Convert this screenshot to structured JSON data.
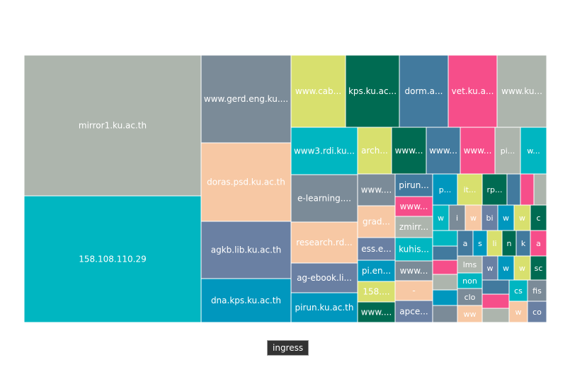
{
  "chart_data": {
    "type": "treemap",
    "series_name": "ingress",
    "legend": {
      "label": "ingress",
      "placement": "bottom-center"
    },
    "palette": {
      "gray": "#adb5ad",
      "cyan": "#00b6c1",
      "slate": "#7b8b98",
      "peach": "#f7c8a4",
      "blue_gray": "#6a80a3",
      "teal": "#0097be",
      "lime": "#d8e06e",
      "green": "#006b52",
      "steel": "#427a9e",
      "pink": "#f64e8a"
    },
    "nodes": [
      {
        "name": "mirror1.ku.ac.th",
        "label": "mirror1.ku.ac.th",
        "value": 41.2,
        "color": "#adb5ad"
      },
      {
        "name": "158.108.110.29",
        "label": "158.108.110.29",
        "value": 44.4,
        "color": "#00b6c1"
      },
      {
        "name": "www.gerd.eng.ku",
        "label": "www.gerd.eng.ku....",
        "value": 15.4,
        "color": "#7b8b98"
      },
      {
        "name": "doras.psd.ku.ac.th",
        "label": "doras.psd.ku.ac.th",
        "value": 13.9,
        "color": "#f7c8a4"
      },
      {
        "name": "agkb.lib.ku.ac.th",
        "label": "agkb.lib.ku.ac.th",
        "value": 10.2,
        "color": "#6a80a3"
      },
      {
        "name": "dna.kps.ku.ac.th",
        "label": "dna.kps.ku.ac.th",
        "value": 7.6,
        "color": "#0097be"
      },
      {
        "name": "www.cab",
        "label": "www.cab...",
        "value": 6.0,
        "color": "#d8e06e"
      },
      {
        "name": "kps.ku.ac",
        "label": "kps.ku.ac...",
        "value": 5.8,
        "color": "#006b52"
      },
      {
        "name": "dorm.a",
        "label": "dorm.a...",
        "value": 5.6,
        "color": "#427a9e"
      },
      {
        "name": "vet.ku.a",
        "label": "vet.ku.a...",
        "value": 5.2,
        "color": "#f64e8a"
      },
      {
        "name": "www.ku",
        "label": "www.ku...",
        "value": 5.2,
        "color": "#adb5ad"
      },
      {
        "name": "www3.rdi.ku",
        "label": "www3.rdi.ku...",
        "value": 5.1,
        "color": "#00b6c1"
      },
      {
        "name": "e-learning",
        "label": "e-learning....",
        "value": 5.1,
        "color": "#7b8b98"
      },
      {
        "name": "research.rd",
        "label": "research.rd...",
        "value": 4.5,
        "color": "#f7c8a4"
      },
      {
        "name": "ag-ebook.li",
        "label": "ag-ebook.li...",
        "value": 3.2,
        "color": "#6a80a3"
      },
      {
        "name": "pirun.ku.ac.th",
        "label": "pirun.ku.ac.th",
        "value": 3.0,
        "color": "#0097be"
      },
      {
        "name": "arch",
        "label": "arch...",
        "value": 2.3,
        "color": "#d8e06e"
      },
      {
        "name": "www-1",
        "label": "www...",
        "value": 2.3,
        "color": "#006b52"
      },
      {
        "name": "www-2",
        "label": "www...",
        "value": 2.3,
        "color": "#427a9e"
      },
      {
        "name": "www-3",
        "label": "www...",
        "value": 2.3,
        "color": "#f64e8a"
      },
      {
        "name": "pi",
        "label": "pi...",
        "value": 1.9,
        "color": "#adb5ad"
      },
      {
        "name": "w-1",
        "label": "w...",
        "value": 1.8,
        "color": "#00b6c1"
      },
      {
        "name": "www-4",
        "label": "www....",
        "value": 2.1,
        "color": "#7b8b98"
      },
      {
        "name": "grad",
        "label": "grad...",
        "value": 2.1,
        "color": "#f7c8a4"
      },
      {
        "name": "ess.e",
        "label": "ess.e...",
        "value": 1.5,
        "color": "#6a80a3"
      },
      {
        "name": "pi.en",
        "label": "pi.en...",
        "value": 1.5,
        "color": "#0097be"
      },
      {
        "name": "158",
        "label": "158....",
        "value": 1.4,
        "color": "#d8e06e"
      },
      {
        "name": "www-5",
        "label": "www....",
        "value": 1.4,
        "color": "#006b52"
      },
      {
        "name": "pirun",
        "label": "pirun...",
        "value": 1.0,
        "color": "#427a9e"
      },
      {
        "name": "www-6",
        "label": "www...",
        "value": 0.9,
        "color": "#f64e8a"
      },
      {
        "name": "zmirr",
        "label": "zmirr...",
        "value": 1.1,
        "color": "#adb5ad"
      },
      {
        "name": "kuhis",
        "label": "kuhis...",
        "value": 1.1,
        "color": "#00b6c1"
      },
      {
        "name": "www-7",
        "label": "www...",
        "value": 1.1,
        "color": "#7b8b98"
      },
      {
        "name": "dash",
        "label": "-",
        "value": 1.1,
        "color": "#f7c8a4"
      },
      {
        "name": "apce",
        "label": "apce...",
        "value": 1.1,
        "color": "#6a80a3"
      },
      {
        "name": "p",
        "label": "p...",
        "value": 0.9,
        "color": "#0097be"
      },
      {
        "name": "it",
        "label": "it...",
        "value": 0.9,
        "color": "#d8e06e"
      },
      {
        "name": "rp",
        "label": "rp...",
        "value": 0.9,
        "color": "#006b52"
      },
      {
        "name": "w-2",
        "label": "w",
        "value": 0.5,
        "color": "#00b6c1"
      },
      {
        "name": "i",
        "label": "i",
        "value": 0.5,
        "color": "#7b8b98"
      },
      {
        "name": "w-3",
        "label": "w",
        "value": 0.5,
        "color": "#f7c8a4"
      },
      {
        "name": "bi",
        "label": "bi",
        "value": 0.5,
        "color": "#6a80a3"
      },
      {
        "name": "w-4",
        "label": "w",
        "value": 0.5,
        "color": "#0097be"
      },
      {
        "name": "w-5",
        "label": "w",
        "value": 0.5,
        "color": "#d8e06e"
      },
      {
        "name": "c",
        "label": "c",
        "value": 0.5,
        "color": "#006b52"
      },
      {
        "name": "a-1",
        "label": "a",
        "value": 0.4,
        "color": "#427a9e"
      },
      {
        "name": "s",
        "label": "s",
        "value": 0.4,
        "color": "#0097be"
      },
      {
        "name": "li",
        "label": "li",
        "value": 0.4,
        "color": "#d8e06e"
      },
      {
        "name": "n",
        "label": "n",
        "value": 0.4,
        "color": "#006b52"
      },
      {
        "name": "k",
        "label": "k",
        "value": 0.4,
        "color": "#427a9e"
      },
      {
        "name": "a-2",
        "label": "a",
        "value": 0.4,
        "color": "#f64e8a"
      },
      {
        "name": "lms",
        "label": "lms",
        "value": 0.4,
        "color": "#adb5ad"
      },
      {
        "name": "non",
        "label": "non",
        "value": 0.4,
        "color": "#00b6c1"
      },
      {
        "name": "clo",
        "label": "clo",
        "value": 0.4,
        "color": "#7b8b98"
      },
      {
        "name": "ww",
        "label": "ww",
        "value": 0.4,
        "color": "#f7c8a4"
      },
      {
        "name": "w-6",
        "label": "w",
        "value": 0.35,
        "color": "#6a80a3"
      },
      {
        "name": "w-7",
        "label": "w",
        "value": 0.35,
        "color": "#0097be"
      },
      {
        "name": "w-8",
        "label": "w",
        "value": 0.35,
        "color": "#d8e06e"
      },
      {
        "name": "sc",
        "label": "sc",
        "value": 0.35,
        "color": "#006b52"
      },
      {
        "name": "cs",
        "label": "cs",
        "value": 0.3,
        "color": "#00b6c1"
      },
      {
        "name": "fis",
        "label": "fis",
        "value": 0.3,
        "color": "#7b8b98"
      },
      {
        "name": "w-9",
        "label": "w",
        "value": 0.3,
        "color": "#f7c8a4"
      },
      {
        "name": "co",
        "label": "co",
        "value": 0.3,
        "color": "#6a80a3"
      }
    ],
    "unlabeled_colors": [
      "#427a9e",
      "#f64e8a",
      "#adb5ad",
      "#00b6c1",
      "#427a9e",
      "#f64e8a",
      "#adb5ad",
      "#0097be",
      "#7b8b98",
      "#427a9e",
      "#f64e8a",
      "#adb5ad",
      "#f64e8a",
      "#adb5ad",
      "#427a9e",
      "#f64e8a",
      "#adb5ad"
    ]
  }
}
